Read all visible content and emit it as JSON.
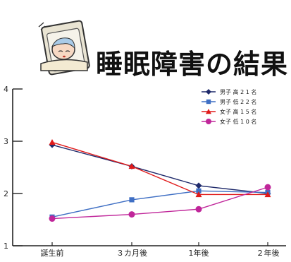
{
  "header": {
    "title": "睡眠障害の結果"
  },
  "chart_data": {
    "type": "line",
    "title": "睡眠障害の結果",
    "categories": [
      "誕生前",
      "３カ月後",
      "1年後",
      "２年後"
    ],
    "ylim": [
      1,
      4
    ],
    "yticks": [
      1,
      2,
      3,
      4
    ],
    "grid": false,
    "legend_position": "top-right",
    "series": [
      {
        "name": "男子 高 2 1 名",
        "color": "#1f2a6b",
        "marker": "diamond",
        "values": [
          2.93,
          2.52,
          2.15,
          2.0
        ]
      },
      {
        "name": "男子 低 2 2 名",
        "color": "#3f6fc4",
        "marker": "square",
        "values": [
          1.55,
          1.88,
          2.05,
          2.02
        ]
      },
      {
        "name": "女子 高 1 5 名",
        "color": "#e01a1a",
        "marker": "triangle",
        "values": [
          2.98,
          2.52,
          1.98,
          1.98
        ]
      },
      {
        "name": "女子 低 1 0 名",
        "color": "#c0269a",
        "marker": "circle",
        "values": [
          1.52,
          1.6,
          1.7,
          2.12
        ]
      }
    ]
  }
}
